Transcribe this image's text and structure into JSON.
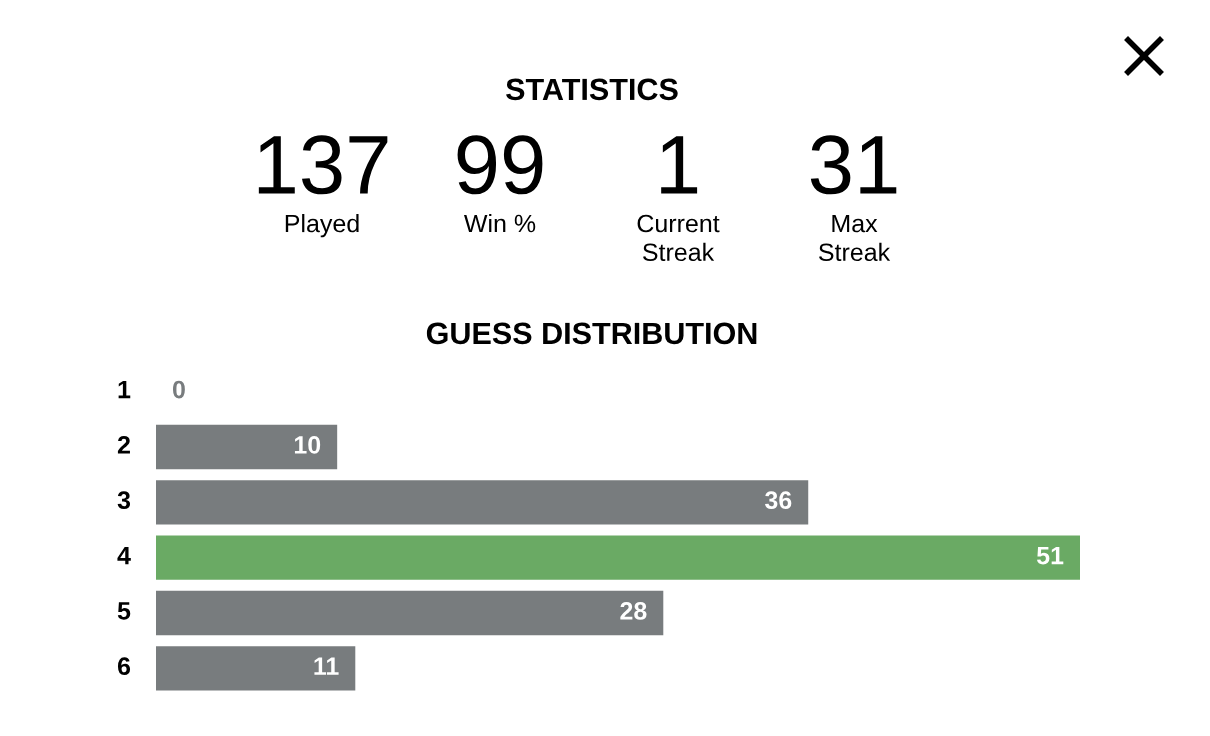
{
  "chart_data": [
    {
      "type": "other",
      "title": "STATISTICS",
      "categories": [
        "Played",
        "Win %",
        "Current\nStreak",
        "Max\nStreak"
      ],
      "values": [
        137,
        99,
        1,
        31
      ],
      "data_labels": true
    },
    {
      "type": "bar",
      "title": "GUESS DISTRIBUTION",
      "orientation": "horizontal",
      "categories": [
        "1",
        "2",
        "3",
        "4",
        "5",
        "6"
      ],
      "values": [
        0,
        10,
        36,
        51,
        28,
        11
      ],
      "colors": [
        "#787c7e",
        "#787c7e",
        "#787c7e",
        "#6aaa64",
        "#787c7e",
        "#787c7e"
      ],
      "data_labels": true
    }
  ]
}
